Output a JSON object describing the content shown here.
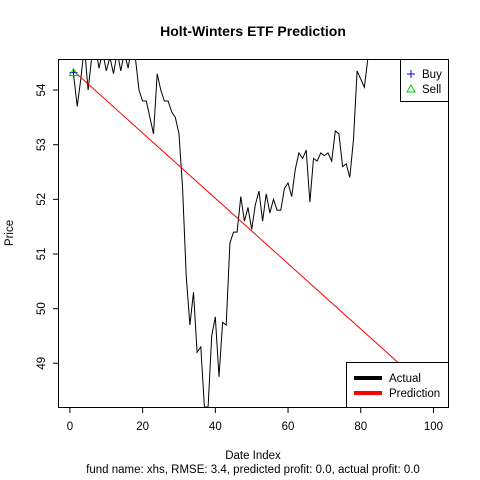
{
  "chart_data": {
    "type": "line",
    "title": "Holt-Winters ETF Prediction",
    "xlabel": "Date Index",
    "ylabel": "Price",
    "subtitle": "fund name: xhs, RMSE: 3.4, predicted profit: 0.0, actual profit: 0.0",
    "xlim": [
      -3,
      104
    ],
    "ylim": [
      48.2,
      54.55
    ],
    "x_ticks": [
      0,
      20,
      40,
      60,
      80,
      100
    ],
    "y_ticks": [
      49,
      50,
      51,
      52,
      53,
      54
    ],
    "grid": false,
    "series": [
      {
        "name": "Actual",
        "color": "#000000",
        "x": [
          1,
          2,
          3,
          4,
          5,
          6,
          7,
          8,
          9,
          10,
          11,
          12,
          13,
          14,
          15,
          16,
          17,
          18,
          19,
          20,
          21,
          22,
          23,
          24,
          25,
          26,
          27,
          28,
          29,
          30,
          31,
          32,
          33,
          34,
          35,
          36,
          37,
          38,
          39,
          40,
          41,
          42,
          43,
          44,
          45,
          46,
          47,
          48,
          49,
          50,
          51,
          52,
          53,
          54,
          55,
          56,
          57,
          58,
          59,
          60,
          61,
          62,
          63,
          64,
          65,
          66,
          67,
          68,
          69,
          70,
          71,
          72,
          73,
          74,
          75,
          76,
          77,
          78,
          79,
          80,
          81,
          82
        ],
        "values": [
          54.3,
          53.7,
          54.2,
          54.8,
          54.0,
          54.6,
          54.8,
          54.4,
          54.7,
          54.35,
          54.6,
          54.3,
          54.7,
          54.35,
          54.7,
          54.4,
          54.8,
          54.6,
          54.0,
          53.8,
          53.8,
          53.5,
          53.2,
          54.3,
          54.0,
          53.8,
          53.8,
          53.6,
          53.5,
          53.2,
          52.2,
          50.6,
          49.7,
          50.3,
          49.2,
          49.3,
          48.2,
          48.2,
          49.5,
          49.85,
          48.75,
          49.75,
          49.7,
          51.2,
          51.4,
          51.4,
          52.05,
          51.6,
          51.85,
          51.45,
          51.9,
          52.15,
          51.6,
          52.1,
          51.75,
          52.0,
          51.8,
          51.8,
          52.2,
          52.3,
          52.05,
          52.55,
          52.85,
          52.75,
          52.9,
          51.95,
          52.75,
          52.7,
          52.85,
          52.8,
          52.85,
          52.7,
          53.25,
          53.2,
          52.6,
          52.65,
          52.4,
          53.1,
          54.35,
          54.2,
          54.05,
          54.6
        ]
      },
      {
        "name": "Prediction",
        "color": "#ff0000",
        "x": [
          1,
          91
        ],
        "values": [
          54.35,
          48.97
        ]
      }
    ],
    "markers": [
      {
        "type": "buy",
        "x": 1,
        "y": 54.32,
        "color": "#0000cc"
      },
      {
        "type": "sell",
        "x": 1,
        "y": 54.32,
        "color": "#00cc00"
      }
    ],
    "legends": [
      {
        "placement": "top-right",
        "entries": [
          {
            "label": "Buy",
            "symbol": "plus",
            "color": "#0000cc"
          },
          {
            "label": "Sell",
            "symbol": "triangle",
            "color": "#00cc00"
          }
        ]
      },
      {
        "placement": "bottom-right",
        "entries": [
          {
            "label": "Actual",
            "symbol": "line",
            "color": "#000000"
          },
          {
            "label": "Prediction",
            "symbol": "line",
            "color": "#ff0000"
          }
        ]
      }
    ]
  }
}
